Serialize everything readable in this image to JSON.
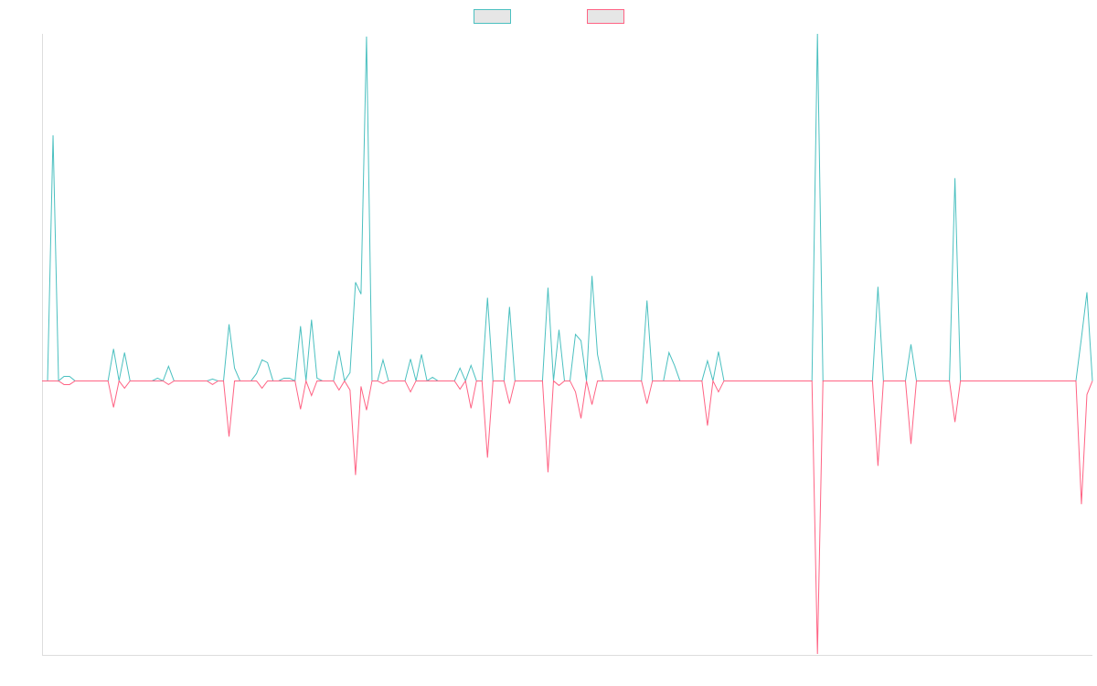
{
  "chart_data": {
    "type": "line",
    "legend": "top",
    "ylim": [
      -300,
      380
    ],
    "series": [
      {
        "color": "#4bc0c0",
        "values": [
          0,
          0,
          269,
          0,
          5,
          5,
          0,
          0,
          0,
          0,
          0,
          0,
          0,
          35,
          0,
          31,
          0,
          0,
          0,
          0,
          0,
          3,
          0,
          16,
          0,
          0,
          0,
          0,
          0,
          0,
          0,
          2,
          0,
          0,
          62,
          14,
          0,
          0,
          0,
          8,
          23,
          20,
          0,
          0,
          3,
          3,
          0,
          60,
          0,
          67,
          3,
          0,
          0,
          0,
          33,
          0,
          9,
          108,
          95,
          377,
          0,
          0,
          23,
          0,
          0,
          0,
          0,
          24,
          0,
          29,
          0,
          4,
          0,
          0,
          0,
          0,
          14,
          0,
          17,
          0,
          0,
          91,
          0,
          0,
          0,
          81,
          0,
          0,
          0,
          0,
          0,
          0,
          102,
          0,
          56,
          0,
          0,
          51,
          44,
          0,
          115,
          29,
          0,
          0,
          0,
          0,
          0,
          0,
          0,
          0,
          88,
          0,
          0,
          0,
          31,
          17,
          0,
          0,
          0,
          0,
          0,
          22,
          0,
          32,
          0,
          0,
          0,
          0,
          0,
          0,
          0,
          0,
          0,
          0,
          0,
          0,
          0,
          0,
          0,
          0,
          0,
          380,
          0,
          0,
          0,
          0,
          0,
          0,
          0,
          0,
          0,
          0,
          103,
          0,
          0,
          0,
          0,
          0,
          40,
          0,
          0,
          0,
          0,
          0,
          0,
          0,
          222,
          0,
          0,
          0,
          0,
          0,
          0,
          0,
          0,
          0,
          0,
          0,
          0,
          0,
          0,
          0,
          0,
          0,
          0,
          0,
          0,
          0,
          0,
          47,
          97,
          0
        ]
      },
      {
        "color": "#ff6384",
        "values": [
          0,
          0,
          0,
          0,
          -4,
          -4,
          0,
          0,
          0,
          0,
          0,
          0,
          0,
          -29,
          0,
          -8,
          0,
          0,
          0,
          0,
          0,
          0,
          0,
          -4,
          0,
          0,
          0,
          0,
          0,
          0,
          0,
          -4,
          0,
          0,
          -61,
          0,
          0,
          0,
          0,
          0,
          -8,
          0,
          0,
          0,
          0,
          0,
          0,
          -31,
          0,
          -16,
          0,
          0,
          0,
          0,
          -10,
          0,
          -10,
          -103,
          -6,
          -32,
          0,
          0,
          -3,
          0,
          0,
          0,
          0,
          -12,
          0,
          0,
          0,
          0,
          0,
          0,
          0,
          0,
          -9,
          0,
          -30,
          0,
          0,
          -84,
          0,
          0,
          0,
          -25,
          0,
          0,
          0,
          0,
          0,
          0,
          -100,
          0,
          -5,
          0,
          0,
          -12,
          -41,
          0,
          -26,
          0,
          0,
          0,
          0,
          0,
          0,
          0,
          0,
          0,
          -25,
          0,
          0,
          0,
          0,
          0,
          0,
          0,
          0,
          0,
          0,
          -49,
          0,
          -12,
          0,
          0,
          0,
          0,
          0,
          0,
          0,
          0,
          0,
          0,
          0,
          0,
          0,
          0,
          0,
          0,
          0,
          -299,
          0,
          0,
          0,
          0,
          0,
          0,
          0,
          0,
          0,
          0,
          -93,
          0,
          0,
          0,
          0,
          0,
          -69,
          0,
          0,
          0,
          0,
          0,
          0,
          0,
          -45,
          0,
          0,
          0,
          0,
          0,
          0,
          0,
          0,
          0,
          0,
          0,
          0,
          0,
          0,
          0,
          0,
          0,
          0,
          0,
          0,
          0,
          0,
          -135,
          -15,
          0
        ]
      }
    ]
  }
}
